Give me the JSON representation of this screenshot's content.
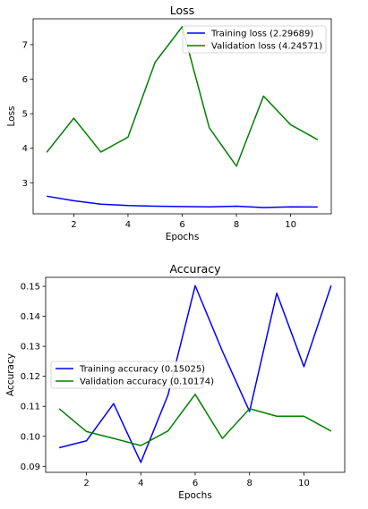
{
  "chart_data": [
    {
      "type": "line",
      "title": "Loss",
      "xlabel": "Epochs",
      "ylabel": "Loss",
      "xlim": [
        0.5,
        11.5
      ],
      "ylim": [
        2.1,
        7.75
      ],
      "xticks": [
        2,
        4,
        6,
        8,
        10
      ],
      "yticks": [
        3,
        4,
        5,
        6,
        7
      ],
      "grid": false,
      "legend_position": "top-right",
      "x": [
        1,
        2,
        3,
        4,
        5,
        6,
        7,
        8,
        9,
        10,
        11
      ],
      "series": [
        {
          "name": "Training loss (2.29689)",
          "color": "#0000ff",
          "values": [
            2.61,
            2.48,
            2.38,
            2.34,
            2.32,
            2.31,
            2.3,
            2.32,
            2.28,
            2.3,
            2.29689
          ]
        },
        {
          "name": "Validation loss (4.24571)",
          "color": "#008000",
          "values": [
            3.88,
            4.87,
            3.89,
            4.32,
            6.49,
            7.52,
            4.59,
            3.48,
            5.51,
            4.68,
            4.24571
          ]
        }
      ]
    },
    {
      "type": "line",
      "title": "Accuracy",
      "xlabel": "Epochs",
      "ylabel": "Accuracy",
      "xlim": [
        0.5,
        11.5
      ],
      "ylim": [
        0.088,
        0.153
      ],
      "xticks": [
        2,
        4,
        6,
        8,
        10
      ],
      "yticks": [
        0.09,
        0.1,
        0.11,
        0.12,
        0.13,
        0.14,
        0.15
      ],
      "ytick_labels": [
        "0.09",
        "0.10",
        "0.11",
        "0.12",
        "0.13",
        "0.14",
        "0.15"
      ],
      "grid": false,
      "legend_position": "center-left",
      "x": [
        1,
        2,
        3,
        4,
        5,
        6,
        7,
        8,
        9,
        10,
        11
      ],
      "series": [
        {
          "name": "Training accuracy (0.15025)",
          "color": "#0000ff",
          "values": [
            0.0962,
            0.0985,
            0.1109,
            0.0913,
            0.1138,
            0.1502,
            0.1284,
            0.1083,
            0.1477,
            0.1232,
            0.15025
          ]
        },
        {
          "name": "Validation accuracy (0.10174)",
          "color": "#008000",
          "values": [
            0.1092,
            0.1016,
            0.0993,
            0.0969,
            0.1018,
            0.114,
            0.0993,
            0.1092,
            0.1067,
            0.1067,
            0.10174
          ]
        }
      ]
    }
  ]
}
